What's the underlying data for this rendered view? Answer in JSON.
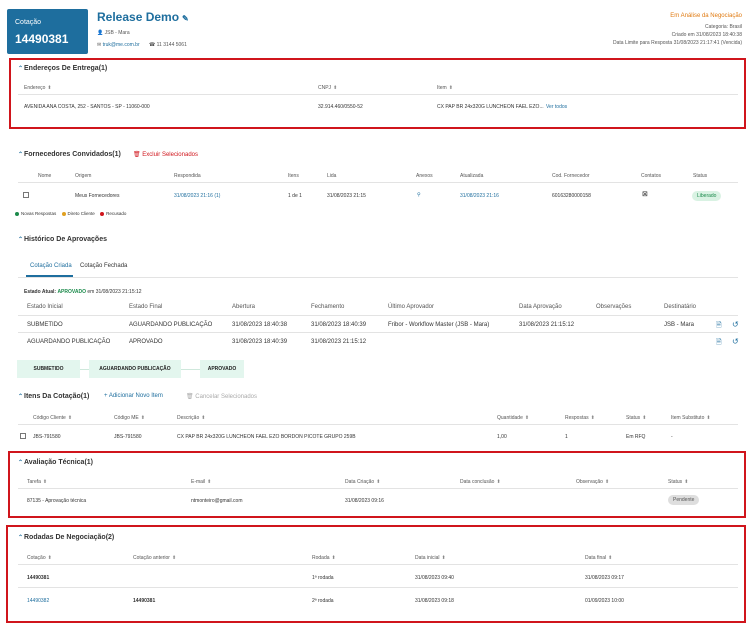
{
  "header": {
    "label": "Cotação",
    "number": "14490381",
    "title": "Release Demo",
    "company": "JSB - Mara",
    "email": "truk@me.com.br",
    "phone": "11 3144 5061",
    "status": "Em Análise da Negociação",
    "category": "Categoria: Brasil",
    "created": "Criado em 31/08/2023 18:40:38",
    "deadline": "Data Limite para Resposta 31/08/2023 21:17:41 (Vencida)"
  },
  "delivery": {
    "title": "Endereços De Entrega(1)",
    "headers": [
      "Endereço",
      "CNPJ",
      "Item"
    ],
    "row": {
      "address": "AVENIDA ANA COSTA, 252 - SANTOS - SP - 11060-000",
      "cnpj": "32.914.460/0550-52",
      "item": "CX PAP BR 24x320G LUNCHEON FAEL EZO...",
      "more": "Ver todos"
    }
  },
  "suppliers": {
    "title": "Fornecedores Convidados(1)",
    "delete": "Excluir Selecionados",
    "headers": [
      "Nome",
      "Origem",
      "Respondida",
      "Itens",
      "Lida",
      "Anexos",
      "Atualizada",
      "Cod. Fornecedor",
      "Contatos",
      "Status"
    ],
    "row": {
      "origin": "Meus Fornecedores",
      "answered": "31/08/2023 21:16 (1)",
      "items": "1 de 1",
      "read": "31/08/2023 21:15",
      "updated": "31/08/2023 21:16",
      "code": "60163280000158",
      "status": "Liberado"
    },
    "legend": [
      "Novas Respostas",
      "Direto Cliente",
      "Recusado"
    ]
  },
  "approvals": {
    "title": "Histórico De Aprovações",
    "tabs": [
      "Cotação Criada",
      "Cotação Fechada"
    ],
    "state_label": "Estado Atual:",
    "state_value": "APROVADO",
    "state_date": "em 31/08/2023 21:15:12",
    "headers": [
      "Estado Inicial",
      "Estado Final",
      "Abertura",
      "Fechamento",
      "Último Aprovador",
      "Data Aprovação",
      "Observações",
      "Destinatário"
    ],
    "rows": [
      [
        "SUBMETIDO",
        "AGUARDANDO PUBLICAÇÃO",
        "31/08/2023 18:40:38",
        "31/08/2023 18:40:39",
        "Fribor - Workflow Master (JSB - Mara)",
        "31/08/2023 21:15:12",
        "",
        "JSB - Mara"
      ],
      [
        "AGUARDANDO PUBLICAÇÃO",
        "APROVADO",
        "31/08/2023 18:40:39",
        "31/08/2023 21:15:12",
        "",
        "",
        "",
        ""
      ]
    ],
    "flow": [
      "SUBMETIDO",
      "AGUARDANDO PUBLICAÇÃO",
      "APROVADO"
    ]
  },
  "items": {
    "title": "Itens Da Cotação(1)",
    "add": "+ Adicionar Novo Item",
    "cancel": "Cancelar Selecionados",
    "headers": [
      "Código Cliente",
      "Código ME",
      "Descrição",
      "Quantidade",
      "Respostas",
      "Status",
      "Item Substituto"
    ],
    "row": [
      "JBS-791580",
      "JBS-791580",
      "CX PAP BR 24x320G LUNCHEON FAEL EZO BORDON PICOTE GRUPO 259B",
      "1,00",
      "1",
      "Em RFQ",
      "-"
    ]
  },
  "technical": {
    "title": "Avaliação Técnica(1)",
    "headers": [
      "Tarefa",
      "E-mail",
      "Data Criação",
      "Data conclusão",
      "Observação",
      "Status"
    ],
    "row": [
      "87135 - Aprovação técnica",
      "ntmonteiro@gmail.com",
      "31/08/2023 09:16",
      "",
      "",
      "Pendente"
    ]
  },
  "rounds": {
    "title": "Rodadas De Negociação(2)",
    "headers": [
      "Cotação",
      "Cotação anterior",
      "Rodada",
      "Data inicial",
      "Data final"
    ],
    "rows": [
      [
        "14490381",
        "",
        "1ª rodada",
        "31/08/2023 09:40",
        "31/08/2023 09:17"
      ],
      [
        "14490382",
        "14490381",
        "2ª rodada",
        "31/08/2023 09:18",
        "01/09/2023 10:00"
      ]
    ]
  }
}
